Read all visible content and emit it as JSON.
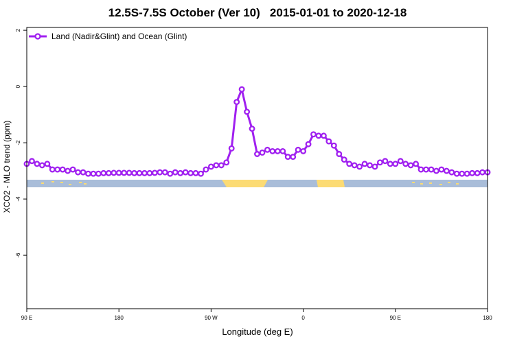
{
  "chart_data": {
    "type": "line",
    "title": "12.5S-7.5S October (Ver 10)   2015-01-01 to 2020-12-18",
    "xlabel": "Longitude (deg E)",
    "ylabel": "XCO2 - MLO trend (ppm)",
    "x_tick_labels": [
      "90 E",
      "180",
      "90 W",
      "0",
      "90 E",
      "180"
    ],
    "y_tick_labels": [
      "2",
      "0",
      "-2",
      "-4",
      "-6"
    ],
    "ylim": [
      -7.9,
      2.1
    ],
    "grid": false,
    "legend_position": "top-left",
    "series": [
      {
        "name": "Land (Nadir&Glint) and Ocean (Glint)",
        "color": "#a020f0",
        "x": [
          90,
          95,
          100,
          105,
          110,
          115,
          120,
          125,
          130,
          135,
          140,
          145,
          150,
          155,
          160,
          165,
          170,
          175,
          180,
          185,
          190,
          195,
          200,
          205,
          210,
          215,
          220,
          225,
          230,
          235,
          240,
          245,
          250,
          255,
          260,
          265,
          270,
          275,
          280,
          285,
          290,
          295,
          300,
          305,
          310,
          315,
          320,
          325,
          330,
          335,
          340,
          345,
          350,
          355,
          360,
          365,
          370,
          375,
          380,
          385,
          390,
          395,
          400,
          405,
          410,
          415,
          420,
          425,
          430,
          435,
          440,
          445,
          450,
          455,
          460,
          465,
          470,
          475,
          480,
          485,
          490,
          495,
          500,
          505,
          510,
          515,
          520,
          525,
          530,
          535,
          540
        ],
        "values": [
          -2.75,
          -2.65,
          -2.75,
          -2.8,
          -2.75,
          -2.95,
          -2.95,
          -2.95,
          -3.0,
          -2.95,
          -3.05,
          -3.05,
          -3.1,
          -3.1,
          -3.1,
          -3.08,
          -3.08,
          -3.07,
          -3.07,
          -3.07,
          -3.07,
          -3.08,
          -3.08,
          -3.08,
          -3.08,
          -3.07,
          -3.05,
          -3.05,
          -3.1,
          -3.05,
          -3.08,
          -3.05,
          -3.08,
          -3.08,
          -3.1,
          -2.95,
          -2.85,
          -2.8,
          -2.8,
          -2.7,
          -2.2,
          -0.55,
          -0.1,
          -0.9,
          -1.5,
          -2.4,
          -2.35,
          -2.25,
          -2.3,
          -2.3,
          -2.3,
          -2.5,
          -2.5,
          -2.25,
          -2.3,
          -2.05,
          -1.7,
          -1.75,
          -1.75,
          -1.95,
          -2.1,
          -2.4,
          -2.6,
          -2.75,
          -2.8,
          -2.85,
          -2.75,
          -2.8,
          -2.85,
          -2.7,
          -2.65,
          -2.75,
          -2.75,
          -2.65,
          -2.75,
          -2.8,
          -2.75,
          -2.95,
          -2.95,
          -2.95,
          -3.0,
          -2.95,
          -3.0,
          -3.05,
          -3.1,
          -3.1,
          -3.1,
          -3.08,
          -3.08,
          -3.05,
          -3.05
        ]
      }
    ],
    "colors": {
      "ocean": "#a9bdd9",
      "land": "#fcdb74"
    }
  }
}
